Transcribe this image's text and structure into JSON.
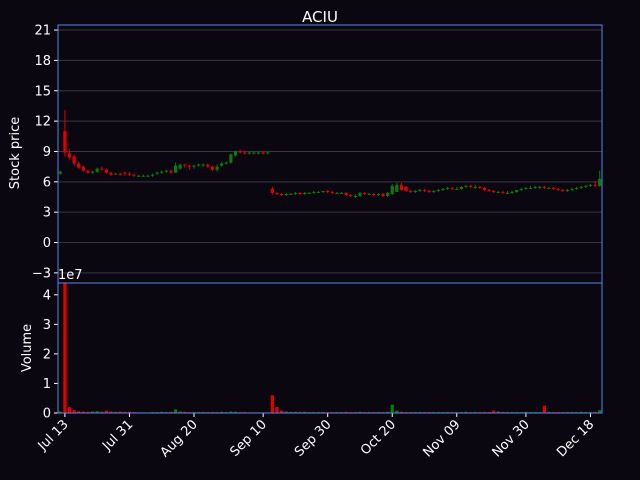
{
  "colors": {
    "background": "#0b0710",
    "frame": "#5a84e6",
    "grid": "#3a3448",
    "up": "#0a7a0a",
    "down": "#e00000",
    "text": "#ffffff"
  },
  "chart_data": [
    {
      "type": "candlestick",
      "title": "ACIU",
      "ylabel": "Stock price",
      "ylim": [
        -4,
        21.5
      ],
      "yticks": [
        -3,
        0,
        3,
        6,
        9,
        12,
        15,
        18,
        21
      ],
      "ytick_labels": [
        "−3",
        "0",
        "3",
        "6",
        "9",
        "12",
        "15",
        "18",
        "21"
      ],
      "grid": true,
      "dates": [
        "Jul 12",
        "Jul 13",
        "Jul 14",
        "Jul 15",
        "Jul 16",
        "Jul 17",
        "Jul 20",
        "Jul 21",
        "Jul 22",
        "Jul 23",
        "Jul 24",
        "Jul 27",
        "Jul 28",
        "Jul 29",
        "Jul 30",
        "Jul 31",
        "Aug 03",
        "Aug 04",
        "Aug 05",
        "Aug 06",
        "Aug 07",
        "Aug 10",
        "Aug 11",
        "Aug 12",
        "Aug 13",
        "Aug 14",
        "Aug 17",
        "Aug 18",
        "Aug 19",
        "Aug 20",
        "Aug 21",
        "Aug 24",
        "Aug 25",
        "Aug 26",
        "Aug 27",
        "Aug 28",
        "Aug 31",
        "Sep 01",
        "Sep 02",
        "Sep 03",
        "Sep 04",
        "Sep 07",
        "Sep 08",
        "Sep 09",
        "Sep 10",
        "Sep 11",
        "Sep 14",
        "Sep 15",
        "Sep 16",
        "Sep 17",
        "Sep 18",
        "Sep 21",
        "Sep 22",
        "Sep 23",
        "Sep 24",
        "Sep 25",
        "Sep 28",
        "Sep 29",
        "Sep 30",
        "Oct 01",
        "Oct 02",
        "Oct 05",
        "Oct 06",
        "Oct 07",
        "Oct 08",
        "Oct 09",
        "Oct 12",
        "Oct 13",
        "Oct 14",
        "Oct 15",
        "Oct 16",
        "Oct 19",
        "Oct 20",
        "Oct 21",
        "Oct 22",
        "Oct 23",
        "Oct 26",
        "Oct 27",
        "Oct 28",
        "Oct 29",
        "Oct 30",
        "Nov 02",
        "Nov 03",
        "Nov 04",
        "Nov 05",
        "Nov 06",
        "Nov 09",
        "Nov 10",
        "Nov 11",
        "Nov 12",
        "Nov 13",
        "Nov 16",
        "Nov 17",
        "Nov 18",
        "Nov 19",
        "Nov 20",
        "Nov 23",
        "Nov 24",
        "Nov 25",
        "Nov 26",
        "Nov 27",
        "Nov 30",
        "Dec 01",
        "Dec 02",
        "Dec 03",
        "Dec 04",
        "Dec 07",
        "Dec 08",
        "Dec 09",
        "Dec 10",
        "Dec 11",
        "Dec 14",
        "Dec 15",
        "Dec 16",
        "Dec 17",
        "Dec 18",
        "Dec 21",
        "Dec 22"
      ],
      "open": [
        6.8,
        11.0,
        8.8,
        8.5,
        7.8,
        7.5,
        7.1,
        6.9,
        7.0,
        7.3,
        7.2,
        6.9,
        6.8,
        6.8,
        6.9,
        6.8,
        6.7,
        6.6,
        6.6,
        6.6,
        6.6,
        6.8,
        6.9,
        7.0,
        7.1,
        6.9,
        7.3,
        7.7,
        7.6,
        7.5,
        7.6,
        7.7,
        7.7,
        7.5,
        7.2,
        7.6,
        7.8,
        7.9,
        8.6,
        9.0,
        8.9,
        8.9,
        8.9,
        8.9,
        8.9,
        8.9,
        5.3,
        4.9,
        4.8,
        4.7,
        4.8,
        4.8,
        4.9,
        4.8,
        4.9,
        4.9,
        5.0,
        5.0,
        5.1,
        5.0,
        4.9,
        4.9,
        4.9,
        4.7,
        4.6,
        4.6,
        4.9,
        4.8,
        4.8,
        4.7,
        4.8,
        4.6,
        4.8,
        5.0,
        5.7,
        5.5,
        5.1,
        5.0,
        5.1,
        5.2,
        5.1,
        5.0,
        5.1,
        5.2,
        5.3,
        5.4,
        5.3,
        5.3,
        5.5,
        5.6,
        5.5,
        5.5,
        5.4,
        5.2,
        5.1,
        5.0,
        5.0,
        4.9,
        4.9,
        5.0,
        5.2,
        5.3,
        5.4,
        5.4,
        5.5,
        5.5,
        5.4,
        5.4,
        5.3,
        5.2,
        5.1,
        5.2,
        5.3,
        5.4,
        5.5,
        5.6,
        5.7,
        5.6
      ],
      "high": [
        7.1,
        13.1,
        9.2,
        8.7,
        8.0,
        7.6,
        7.2,
        7.1,
        7.4,
        7.5,
        7.3,
        7.0,
        6.9,
        6.9,
        7.0,
        7.0,
        6.8,
        6.7,
        6.7,
        6.7,
        6.8,
        7.0,
        7.1,
        7.2,
        7.2,
        7.9,
        7.8,
        7.8,
        7.7,
        7.7,
        7.8,
        7.8,
        7.8,
        7.6,
        7.7,
        8.0,
        8.0,
        8.8,
        9.1,
        9.2,
        9.1,
        9.0,
        9.0,
        9.0,
        9.0,
        9.0,
        5.5,
        5.0,
        4.9,
        4.9,
        4.9,
        5.0,
        5.0,
        5.0,
        5.0,
        5.1,
        5.1,
        5.1,
        5.2,
        5.1,
        5.0,
        5.0,
        5.0,
        4.8,
        4.8,
        5.0,
        5.0,
        4.9,
        4.9,
        4.9,
        4.9,
        5.0,
        5.8,
        5.9,
        5.9,
        5.6,
        5.2,
        5.2,
        5.3,
        5.3,
        5.2,
        5.2,
        5.3,
        5.4,
        5.5,
        5.5,
        5.5,
        5.6,
        5.7,
        5.7,
        5.7,
        5.6,
        5.5,
        5.3,
        5.2,
        5.1,
        5.1,
        5.1,
        5.1,
        5.2,
        5.4,
        5.5,
        5.6,
        5.6,
        5.6,
        5.6,
        5.5,
        5.5,
        5.4,
        5.3,
        5.3,
        5.4,
        5.5,
        5.6,
        5.7,
        5.8,
        6.1,
        7.1
      ],
      "low": [
        6.7,
        8.5,
        8.2,
        7.6,
        7.3,
        7.0,
        6.8,
        6.8,
        6.9,
        7.1,
        6.8,
        6.6,
        6.7,
        6.6,
        6.6,
        6.6,
        6.5,
        6.5,
        6.5,
        6.5,
        6.5,
        6.7,
        6.8,
        6.9,
        6.8,
        6.9,
        7.2,
        7.4,
        7.2,
        7.3,
        7.5,
        7.5,
        7.4,
        7.1,
        7.0,
        7.5,
        7.7,
        7.8,
        8.5,
        8.8,
        8.7,
        8.7,
        8.7,
        8.7,
        8.7,
        8.7,
        4.7,
        4.7,
        4.6,
        4.6,
        4.7,
        4.7,
        4.7,
        4.7,
        4.8,
        4.8,
        4.9,
        4.9,
        4.9,
        4.8,
        4.8,
        4.8,
        4.6,
        4.5,
        4.4,
        4.5,
        4.7,
        4.7,
        4.6,
        4.6,
        4.5,
        4.5,
        4.7,
        5.0,
        5.1,
        5.0,
        4.9,
        4.9,
        5.0,
        5.0,
        4.9,
        4.9,
        5.0,
        5.1,
        5.2,
        5.2,
        5.2,
        5.2,
        5.4,
        5.4,
        5.3,
        5.3,
        5.1,
        5.0,
        4.9,
        4.9,
        4.8,
        4.8,
        4.8,
        4.9,
        5.1,
        5.2,
        5.3,
        5.3,
        5.3,
        5.3,
        5.3,
        5.2,
        5.1,
        5.0,
        5.0,
        5.1,
        5.2,
        5.3,
        5.4,
        5.5,
        5.5,
        5.5
      ],
      "close": [
        7.0,
        8.9,
        8.4,
        7.8,
        7.4,
        7.1,
        6.9,
        7.0,
        7.3,
        7.2,
        6.9,
        6.7,
        6.8,
        6.7,
        6.8,
        6.7,
        6.6,
        6.6,
        6.6,
        6.6,
        6.7,
        6.9,
        7.0,
        7.1,
        6.9,
        7.6,
        7.7,
        7.6,
        7.5,
        7.6,
        7.7,
        7.7,
        7.5,
        7.2,
        7.5,
        7.8,
        7.9,
        8.7,
        9.0,
        8.9,
        8.8,
        8.9,
        8.9,
        8.9,
        8.8,
        8.9,
        4.9,
        4.8,
        4.7,
        4.8,
        4.8,
        4.9,
        4.8,
        4.9,
        4.9,
        5.0,
        5.0,
        5.1,
        5.0,
        4.9,
        4.9,
        4.9,
        4.7,
        4.6,
        4.6,
        4.9,
        4.8,
        4.8,
        4.7,
        4.8,
        4.6,
        4.9,
        5.6,
        5.7,
        5.2,
        5.1,
        5.0,
        5.1,
        5.2,
        5.1,
        5.0,
        5.1,
        5.2,
        5.3,
        5.4,
        5.3,
        5.3,
        5.5,
        5.6,
        5.5,
        5.5,
        5.4,
        5.2,
        5.1,
        5.0,
        5.0,
        4.9,
        4.9,
        5.0,
        5.2,
        5.3,
        5.4,
        5.4,
        5.5,
        5.5,
        5.4,
        5.4,
        5.3,
        5.2,
        5.1,
        5.2,
        5.3,
        5.4,
        5.5,
        5.6,
        5.7,
        5.6,
        6.3
      ]
    },
    {
      "type": "bar",
      "ylabel": "Volume",
      "scale_label": "1e7",
      "ylim": [
        0,
        4.4
      ],
      "yticks": [
        0,
        1,
        2,
        3,
        4
      ],
      "xtick_labels": [
        "Jul 13",
        "Jul 31",
        "Aug 20",
        "Sep 10",
        "Sep 30",
        "Oct 20",
        "Nov 09",
        "Nov 30",
        "Dec 18"
      ],
      "xtick_dates": [
        "Jul 13",
        "Jul 31",
        "Aug 20",
        "Sep 10",
        "Sep 30",
        "Oct 20",
        "Nov 09",
        "Nov 30",
        "Dec 18"
      ],
      "volume_1e7": [
        0.05,
        4.4,
        0.2,
        0.1,
        0.06,
        0.05,
        0.04,
        0.05,
        0.06,
        0.04,
        0.08,
        0.05,
        0.04,
        0.05,
        0.04,
        0.04,
        0.03,
        0.02,
        0.02,
        0.02,
        0.03,
        0.03,
        0.04,
        0.03,
        0.04,
        0.12,
        0.05,
        0.04,
        0.03,
        0.03,
        0.03,
        0.03,
        0.03,
        0.03,
        0.03,
        0.04,
        0.03,
        0.05,
        0.04,
        0.03,
        0.03,
        0.02,
        0.02,
        0.02,
        0.02,
        0.02,
        0.6,
        0.2,
        0.08,
        0.05,
        0.04,
        0.04,
        0.04,
        0.04,
        0.03,
        0.03,
        0.03,
        0.03,
        0.03,
        0.03,
        0.03,
        0.03,
        0.04,
        0.03,
        0.03,
        0.04,
        0.03,
        0.03,
        0.03,
        0.03,
        0.03,
        0.04,
        0.28,
        0.08,
        0.04,
        0.03,
        0.03,
        0.03,
        0.03,
        0.03,
        0.03,
        0.03,
        0.03,
        0.03,
        0.03,
        0.03,
        0.03,
        0.03,
        0.04,
        0.03,
        0.03,
        0.03,
        0.03,
        0.03,
        0.08,
        0.05,
        0.04,
        0.03,
        0.03,
        0.03,
        0.03,
        0.04,
        0.03,
        0.03,
        0.03,
        0.25,
        0.04,
        0.03,
        0.03,
        0.03,
        0.03,
        0.03,
        0.03,
        0.04,
        0.03,
        0.03,
        0.04,
        0.1
      ]
    }
  ]
}
